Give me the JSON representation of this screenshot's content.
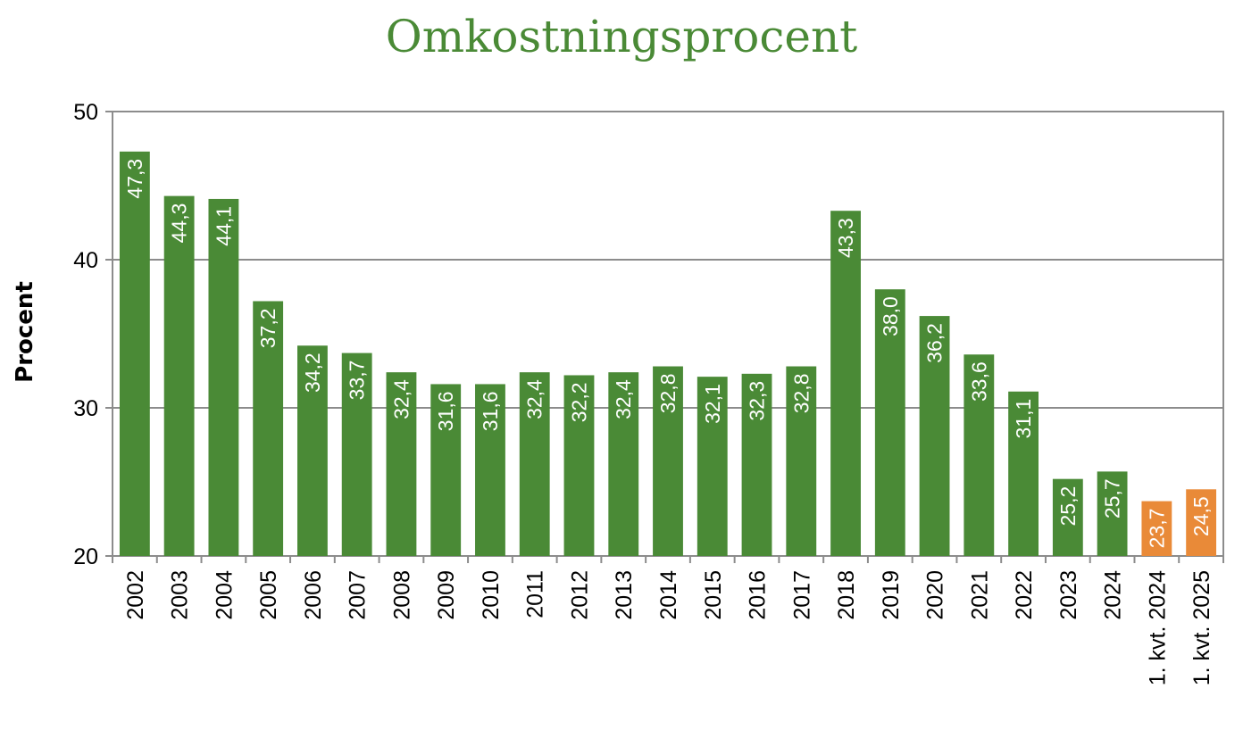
{
  "chart_data": {
    "type": "bar",
    "title": "Omkostningsprocent",
    "ylabel": "Procent",
    "ylim": [
      20,
      50
    ],
    "yticks": [
      "20",
      "30",
      "40",
      "50"
    ],
    "grid": true,
    "categories": [
      "2002",
      "2003",
      "2004",
      "2005",
      "2006",
      "2007",
      "2008",
      "2009",
      "2010",
      "2011",
      "2012",
      "2013",
      "2014",
      "2015",
      "2016",
      "2017",
      "2018",
      "2019",
      "2020",
      "2021",
      "2022",
      "2023",
      "2024",
      "1. kvt. 2024",
      "1. kvt. 2025"
    ],
    "values": [
      47.3,
      44.3,
      44.1,
      37.2,
      34.2,
      33.7,
      32.4,
      31.6,
      31.6,
      32.4,
      32.2,
      32.4,
      32.8,
      32.1,
      32.3,
      32.8,
      43.3,
      38.0,
      36.2,
      33.6,
      31.1,
      25.2,
      25.7,
      23.7,
      24.5
    ],
    "labels": [
      "47,3",
      "44,3",
      "44,1",
      "37,2",
      "34,2",
      "33,7",
      "32,4",
      "31,6",
      "31,6",
      "32,4",
      "32,2",
      "32,4",
      "32,8",
      "32,1",
      "32,3",
      "32,8",
      "43,3",
      "38,0",
      "36,2",
      "33,6",
      "31,1",
      "25,2",
      "25,7",
      "23,7",
      "24,5"
    ],
    "colors": [
      "#4a8a36",
      "#4a8a36",
      "#4a8a36",
      "#4a8a36",
      "#4a8a36",
      "#4a8a36",
      "#4a8a36",
      "#4a8a36",
      "#4a8a36",
      "#4a8a36",
      "#4a8a36",
      "#4a8a36",
      "#4a8a36",
      "#4a8a36",
      "#4a8a36",
      "#4a8a36",
      "#4a8a36",
      "#4a8a36",
      "#4a8a36",
      "#4a8a36",
      "#4a8a36",
      "#4a8a36",
      "#4a8a36",
      "#e98a38",
      "#e98a38"
    ]
  }
}
